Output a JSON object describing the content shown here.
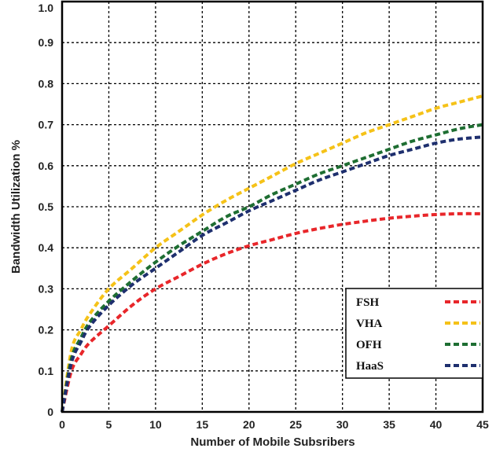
{
  "chart_data": {
    "type": "line",
    "title": "",
    "xlabel": "Number of Mobile Subsribers",
    "ylabel": "Bandwidth Utilization %",
    "xlim": [
      0,
      45
    ],
    "ylim": [
      0,
      1.0
    ],
    "x_ticks": [
      "0",
      "5",
      "10",
      "15",
      "20",
      "25",
      "30",
      "35",
      "40",
      "45"
    ],
    "y_ticks": [
      "0",
      "0.1",
      "0.2",
      "0.3",
      "0.4",
      "0.5",
      "0.6",
      "0.7",
      "0.8",
      "0.9",
      "1.0"
    ],
    "grid": true,
    "legend_position": "bottom-right",
    "line_style": "dashed",
    "x": [
      0,
      1,
      2,
      3,
      5,
      7.5,
      10,
      12.5,
      15,
      17.5,
      20,
      22.5,
      25,
      27.5,
      30,
      32.5,
      35,
      37.5,
      40,
      42.5,
      45
    ],
    "series": [
      {
        "name": "FSH",
        "color": "#e8262a",
        "values": [
          0.0,
          0.1,
          0.14,
          0.17,
          0.21,
          0.26,
          0.3,
          0.33,
          0.36,
          0.385,
          0.405,
          0.42,
          0.435,
          0.447,
          0.457,
          0.465,
          0.472,
          0.477,
          0.481,
          0.483,
          0.483
        ]
      },
      {
        "name": "VHA",
        "color": "#f5c218",
        "values": [
          0.0,
          0.15,
          0.2,
          0.24,
          0.3,
          0.35,
          0.4,
          0.44,
          0.48,
          0.515,
          0.545,
          0.575,
          0.605,
          0.63,
          0.655,
          0.68,
          0.7,
          0.72,
          0.74,
          0.755,
          0.77
        ]
      },
      {
        "name": "OFH",
        "color": "#1e6e32",
        "values": [
          0.0,
          0.13,
          0.18,
          0.22,
          0.27,
          0.32,
          0.365,
          0.405,
          0.44,
          0.475,
          0.5,
          0.53,
          0.555,
          0.58,
          0.6,
          0.62,
          0.64,
          0.66,
          0.675,
          0.69,
          0.7
        ]
      },
      {
        "name": "HaaS",
        "color": "#1e2f6e",
        "values": [
          0.0,
          0.12,
          0.17,
          0.21,
          0.26,
          0.31,
          0.35,
          0.39,
          0.43,
          0.46,
          0.49,
          0.515,
          0.54,
          0.565,
          0.585,
          0.605,
          0.625,
          0.64,
          0.655,
          0.665,
          0.67
        ]
      }
    ]
  }
}
